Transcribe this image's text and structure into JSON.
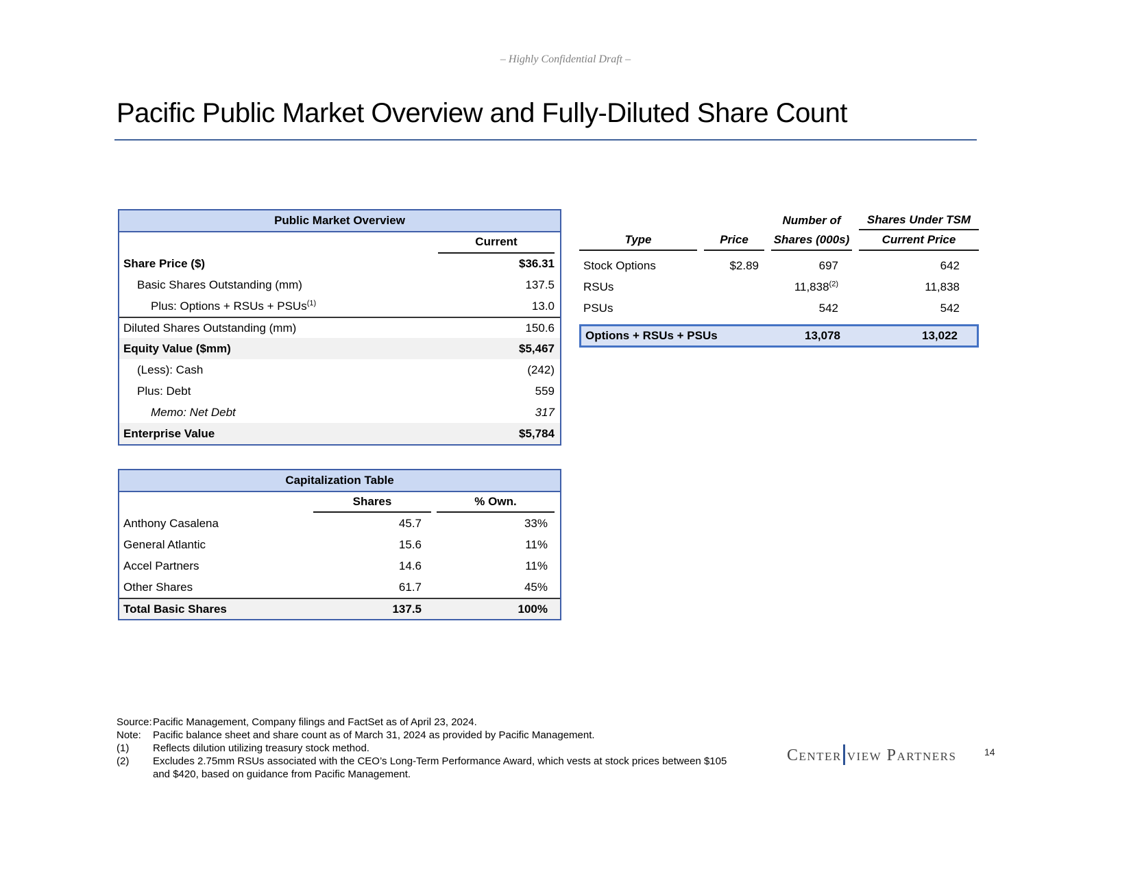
{
  "page": {
    "confidential": "– Highly Confidential Draft –",
    "title": "Pacific Public Market Overview and Fully-Diluted Share Count",
    "page_number": "14"
  },
  "colors": {
    "table_border": "#3F5FA9",
    "header_fill": "#CBD9F3",
    "highlight_fill": "#D9E2F5",
    "highlight_border": "#4472C4",
    "shaded_row": "#F1F1F1",
    "title_rule": "#41629A"
  },
  "public_market": {
    "title": "Public Market Overview",
    "col_header": "Current",
    "rows": [
      {
        "label": "Share Price ($)",
        "value": "$36.31"
      },
      {
        "label": "Basic Shares Outstanding (mm)",
        "value": "137.5"
      },
      {
        "label": "Plus: Options + RSUs + PSUs",
        "sup": "(1)",
        "value": "13.0"
      },
      {
        "label": "Diluted Shares Outstanding (mm)",
        "value": "150.6"
      },
      {
        "label": "Equity Value ($mm)",
        "value": "$5,467"
      },
      {
        "label": "(Less): Cash",
        "value": "(242)"
      },
      {
        "label": "Plus: Debt",
        "value": "559"
      },
      {
        "label": "Memo: Net Debt",
        "value": "317"
      },
      {
        "label": "Enterprise Value",
        "value": "$5,784"
      }
    ]
  },
  "tsm": {
    "head": {
      "number_of": "Number of",
      "shares_under_tsm": "Shares Under TSM",
      "type": "Type",
      "price": "Price",
      "shares_000s": "Shares (000s)",
      "current_price": "Current Price"
    },
    "rows": [
      {
        "type": "Stock Options",
        "price": "$2.89",
        "shares": "697",
        "tsm": "642"
      },
      {
        "type": "RSUs",
        "price": "",
        "shares": "11,838",
        "shares_sup": "(2)",
        "tsm": "11,838"
      },
      {
        "type": "PSUs",
        "price": "",
        "shares": "542",
        "tsm": "542"
      }
    ],
    "total": {
      "label": "Options + RSUs + PSUs",
      "shares": "13,078",
      "tsm": "13,022"
    }
  },
  "cap_table": {
    "title": "Capitalization Table",
    "col_shares": "Shares",
    "col_own": "% Own.",
    "rows": [
      {
        "label": "Anthony Casalena",
        "shares": "45.7",
        "own": "33%"
      },
      {
        "label": "General Atlantic",
        "shares": "15.6",
        "own": "11%"
      },
      {
        "label": "Accel Partners",
        "shares": "14.6",
        "own": "11%"
      },
      {
        "label": "Other Shares",
        "shares": "61.7",
        "own": "45%"
      }
    ],
    "total": {
      "label": "Total Basic Shares",
      "shares": "137.5",
      "own": "100%"
    }
  },
  "footnotes": {
    "source_label": "Source:",
    "source_text": "Pacific Management, Company filings and FactSet as of April 23, 2024.",
    "note_label": "Note:",
    "note_text": "Pacific balance sheet and share count as of March 31, 2024 as provided by Pacific Management.",
    "fn1_label": "(1)",
    "fn1_text": "Reflects dilution utilizing treasury stock method.",
    "fn2_label": "(2)",
    "fn2_text": "Excludes 2.75mm RSUs associated with the CEO’s Long-Term Performance Award, which vests at stock prices between $105 and $420, based on guidance from Pacific Management."
  },
  "logo": {
    "part1": "Center",
    "part2": "view Partners"
  }
}
